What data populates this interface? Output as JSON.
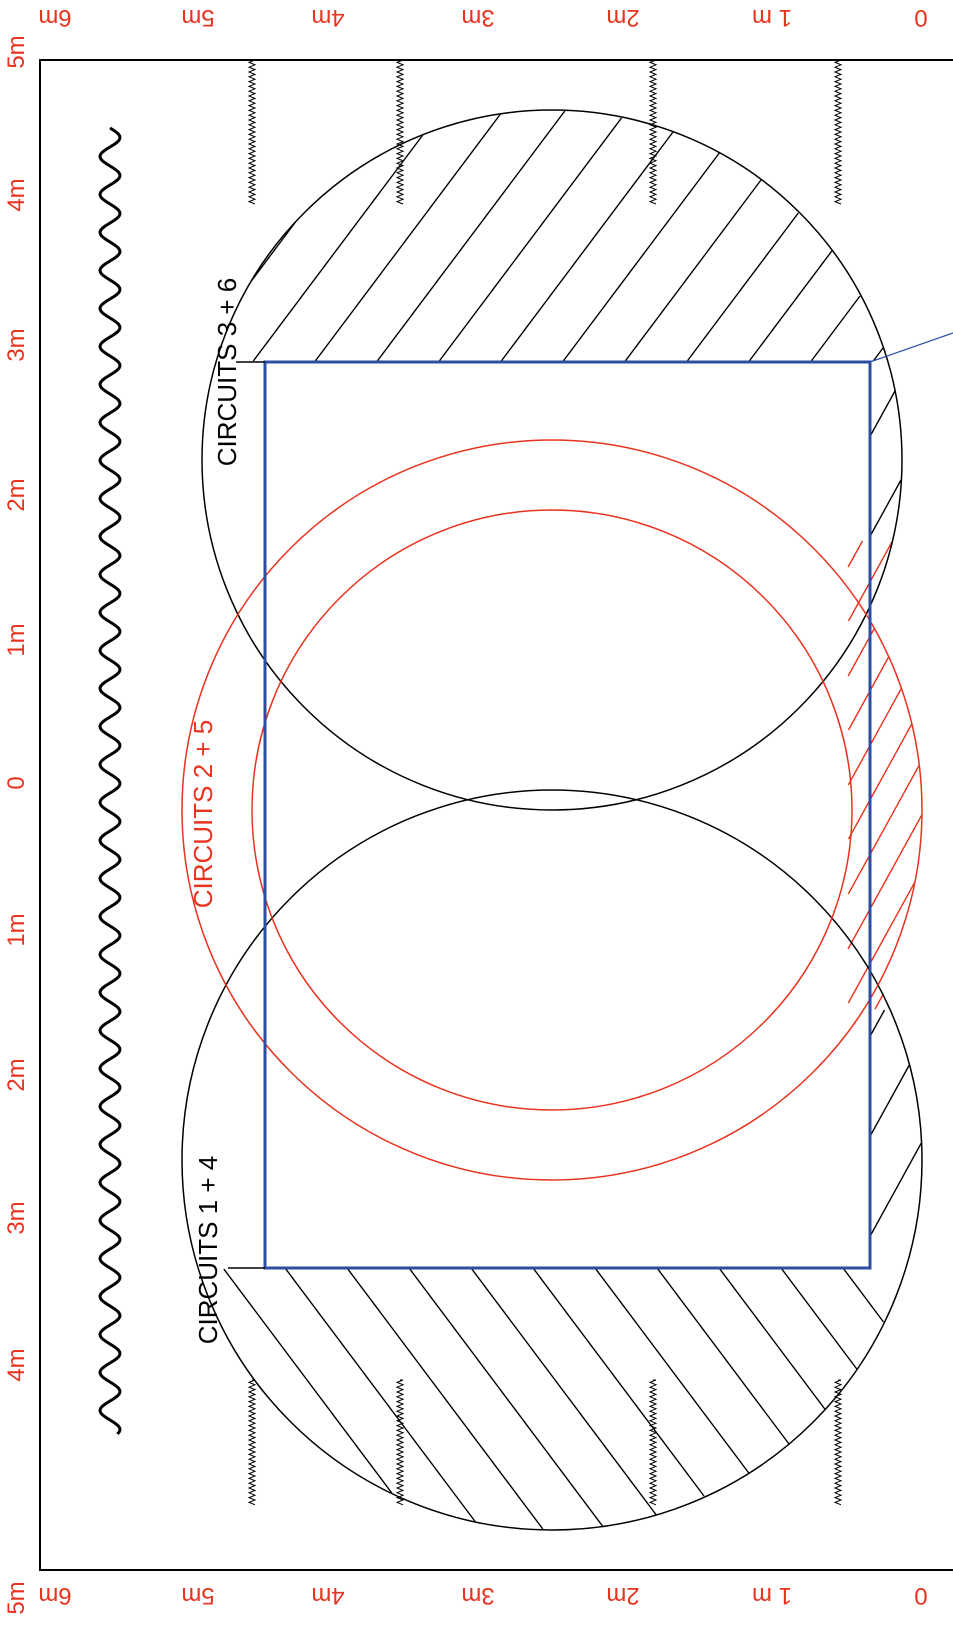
{
  "colors": {
    "scale": "#e8331f",
    "outline": "#000000",
    "rect": "#2b4ea3",
    "red_circle": "#e8331f",
    "black": "#000000"
  },
  "top_scale": [
    "6m",
    "5m",
    "4m",
    "3m",
    "2m",
    "1 m",
    "0"
  ],
  "bottom_scale": [
    "6m",
    "5m",
    "4m",
    "3m",
    "2m",
    "1 m",
    "0"
  ],
  "left_scale": [
    "5m",
    "4m",
    "3m",
    "2m",
    "1m",
    "0",
    "1m",
    "2m",
    "3m",
    "4m",
    "5m"
  ],
  "circuit_labels": {
    "c36": "CIRCUITS 3 + 6",
    "c25": "CIRCUITS 2 + 5",
    "c14": "CIRCUITS 1 + 4"
  }
}
